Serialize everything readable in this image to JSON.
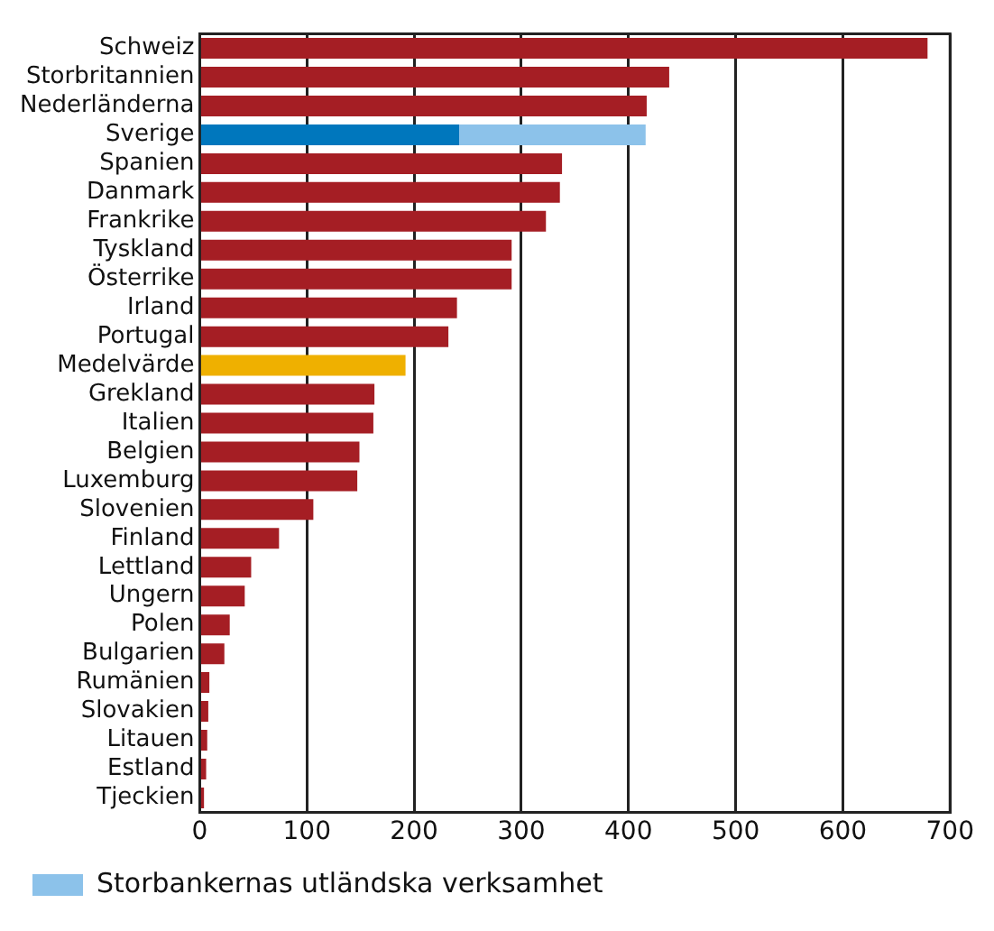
{
  "chart_data": {
    "type": "bar",
    "orientation": "horizontal",
    "stacked": true,
    "categories": [
      "Schweiz",
      "Storbritannien",
      "Nederländerna",
      "Sverige",
      "Spanien",
      "Danmark",
      "Frankrike",
      "Tyskland",
      "Österrike",
      "Irland",
      "Portugal",
      "Medelvärde",
      "Grekland",
      "Italien",
      "Belgien",
      "Luxemburg",
      "Slovenien",
      "Finland",
      "Lettland",
      "Ungern",
      "Polen",
      "Bulgarien",
      "Rumänien",
      "Slovakien",
      "Litauen",
      "Estland",
      "Tjeckien"
    ],
    "series": [
      {
        "colors": [
          "#a51e24",
          "#a51e24",
          "#a51e24",
          "#0077bd",
          "#a51e24",
          "#a51e24",
          "#a51e24",
          "#a51e24",
          "#a51e24",
          "#a51e24",
          "#a51e24",
          "#efb000",
          "#a51e24",
          "#a51e24",
          "#a51e24",
          "#a51e24",
          "#a51e24",
          "#a51e24",
          "#a51e24",
          "#a51e24",
          "#a51e24",
          "#a51e24",
          "#a51e24",
          "#a51e24",
          "#a51e24",
          "#a51e24",
          "#a51e24"
        ],
        "values": [
          679,
          438,
          417,
          242,
          338,
          336,
          323,
          291,
          291,
          240,
          232,
          192,
          163,
          162,
          149,
          147,
          106,
          74,
          48,
          42,
          28,
          23,
          9,
          8,
          7,
          6,
          4
        ]
      },
      {
        "name": "Storbankernas utländska verksamhet",
        "color": "#8cc2ea",
        "values": [
          null,
          null,
          null,
          174,
          null,
          null,
          null,
          null,
          null,
          null,
          null,
          null,
          null,
          null,
          null,
          null,
          null,
          null,
          null,
          null,
          null,
          null,
          null,
          null,
          null,
          null,
          null
        ]
      }
    ],
    "xlim": [
      0,
      700
    ],
    "xticks": [
      0,
      100,
      200,
      300,
      400,
      500,
      600,
      700
    ],
    "grid": "x",
    "legend": "bottom"
  }
}
